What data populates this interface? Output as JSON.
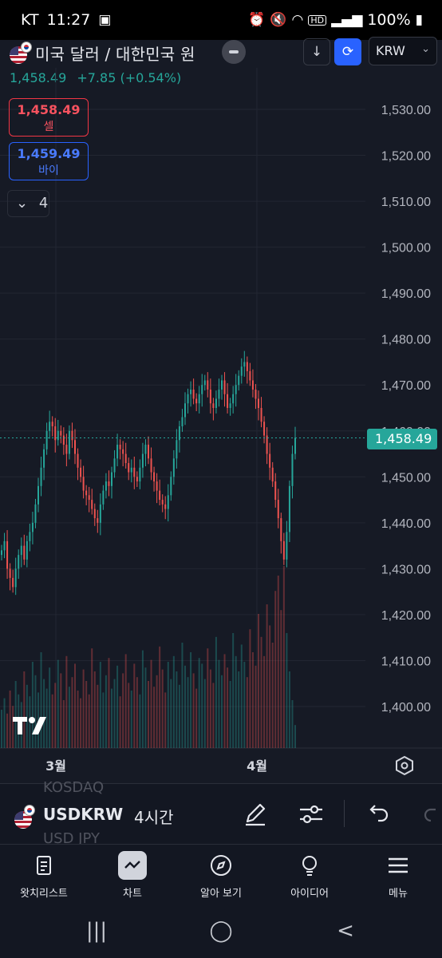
{
  "status_bar": {
    "carrier": "KT",
    "time": "11:27",
    "battery": "100%"
  },
  "header": {
    "title": "미국 달러 / 대한민국 원",
    "currency": "KRW",
    "last_price": "1,458.49",
    "change": "+7.85 (+0.54%)"
  },
  "quotes": {
    "sell_price": "1,458.49",
    "sell_label": "셀",
    "buy_price": "1,459.49",
    "buy_label": "바이"
  },
  "studies_count": "4",
  "chart_data": {
    "type": "candlestick",
    "symbol": "USDKRW",
    "interval": "4시간",
    "y_ticks": [
      "1,530.00",
      "1,520.00",
      "1,510.00",
      "1,500.00",
      "1,490.00",
      "1,480.00",
      "1,470.00",
      "1,460.00",
      "1,450.00",
      "1,440.00",
      "1,430.00",
      "1,420.00",
      "1,410.00",
      "1,400.00"
    ],
    "y_range": [
      1390,
      1535
    ],
    "x_ticks": [
      "3월",
      "4월"
    ],
    "last_value": "1,458.49",
    "last_value_num": 1458.49,
    "up_color": "#26a69a",
    "down_color": "#ef5350",
    "closes": [
      1434,
      1436,
      1430,
      1428,
      1426,
      1430,
      1433,
      1435,
      1432,
      1436,
      1438,
      1440,
      1444,
      1448,
      1452,
      1456,
      1460,
      1462,
      1461,
      1458,
      1460,
      1459,
      1457,
      1455,
      1460,
      1458,
      1455,
      1452,
      1450,
      1447,
      1446,
      1445,
      1443,
      1441,
      1440,
      1444,
      1447,
      1449,
      1448,
      1451,
      1454,
      1457,
      1456,
      1455,
      1453,
      1451,
      1452,
      1450,
      1449,
      1452,
      1455,
      1457,
      1454,
      1451,
      1449,
      1447,
      1445,
      1444,
      1443,
      1446,
      1450,
      1454,
      1458,
      1461,
      1463,
      1466,
      1468,
      1469,
      1467,
      1466,
      1468,
      1470,
      1471,
      1469,
      1466,
      1465,
      1467,
      1469,
      1471,
      1468,
      1465,
      1466,
      1468,
      1470,
      1472,
      1474,
      1475,
      1473,
      1471,
      1469,
      1467,
      1465,
      1462,
      1459,
      1455,
      1452,
      1449,
      1445,
      1441,
      1436,
      1432,
      1438,
      1448,
      1455,
      1458.49
    ],
    "x_positions_pct_note": "",
    "volumes": [
      20,
      26,
      18,
      30,
      22,
      35,
      28,
      24,
      40,
      33,
      27,
      45,
      38,
      29,
      50,
      36,
      31,
      42,
      28,
      34,
      46,
      39,
      25,
      48,
      32,
      37,
      44,
      30,
      26,
      41,
      35,
      28,
      52,
      40,
      33,
      45,
      29,
      38,
      47,
      31,
      36,
      43,
      27,
      39,
      49,
      34,
      30,
      44,
      37,
      28,
      51,
      42,
      35,
      46,
      32,
      38,
      53,
      41,
      29,
      45,
      36,
      48,
      40,
      33,
      55,
      43,
      37,
      50,
      39,
      31,
      47,
      44,
      36,
      52,
      41,
      34,
      58,
      46,
      38,
      49,
      42,
      35,
      60,
      48,
      40,
      54,
      45,
      37,
      62,
      50,
      43,
      70,
      58,
      48,
      75,
      64,
      55,
      82,
      90,
      72,
      95,
      60,
      40,
      25,
      12
    ]
  },
  "toolbar": {
    "ticker": "USDKRW",
    "interval": "4시간",
    "ghost_above": "KOSDAQ",
    "ghost_below": "USD JPY"
  },
  "nav": [
    {
      "label": "왓치리스트",
      "icon": "watchlist-icon"
    },
    {
      "label": "차트",
      "icon": "chart-icon"
    },
    {
      "label": "알아 보기",
      "icon": "compass-icon"
    },
    {
      "label": "아이디어",
      "icon": "lightbulb-icon"
    },
    {
      "label": "메뉴",
      "icon": "menu-icon"
    }
  ]
}
